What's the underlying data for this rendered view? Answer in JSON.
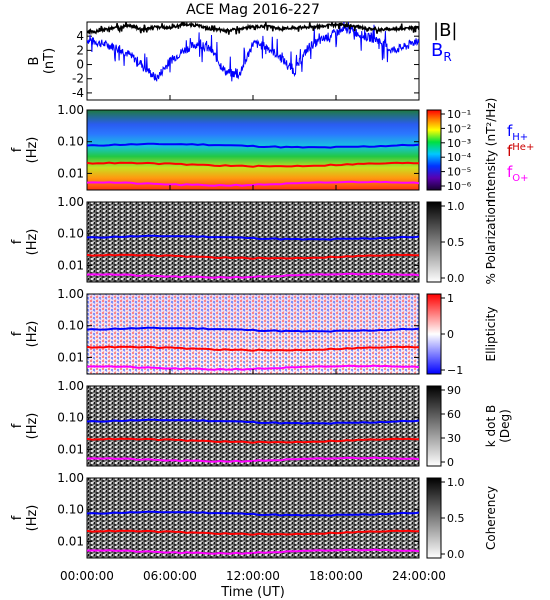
{
  "title": "ACE Mag 2016-227",
  "xlabel": "Time (UT)",
  "x_ticks": [
    "00:00:00",
    "06:00:00",
    "12:00:00",
    "18:00:00",
    "24:00:00"
  ],
  "colors": {
    "total_B": "#000000",
    "B_R": "#0000ff",
    "f_H": "#0000ff",
    "f_He": "#ff0000",
    "f_O": "#ff00ff"
  },
  "legend": {
    "absB": "|B|",
    "BR_main": "B",
    "BR_sub": "R",
    "f_main": "f",
    "H_sub": "H+",
    "He_sup": "He+",
    "O_sub": "O+"
  },
  "panel1": {
    "ylabel_main": "B",
    "ylabel_unit": "(nT)",
    "yticks": [
      "4",
      "2",
      "0",
      "-2",
      "-4"
    ],
    "ylim": [
      -5,
      6
    ]
  },
  "freq_axis": {
    "ylabel_main": "f",
    "ylabel_unit": "(Hz)",
    "yticks": [
      "1.00",
      "0.10",
      "0.01"
    ]
  },
  "panels": {
    "intensity": {
      "cbar_label": "Intensity (nT²/Hz)",
      "cbar_ticks": [
        "10⁻¹",
        "10⁻²",
        "10⁻³",
        "10⁻⁴",
        "10⁻⁵",
        "10⁻⁶"
      ]
    },
    "polarization": {
      "cbar_label": "% Polarization",
      "cbar_ticks": [
        "1.0",
        "0.5",
        "0.0"
      ]
    },
    "ellipticity": {
      "cbar_label": "Ellipticity",
      "cbar_ticks": [
        "1",
        "0",
        "−1"
      ]
    },
    "kdotb": {
      "cbar_label": "k dot B",
      "cbar_unit": "(Deg)",
      "cbar_ticks": [
        "90",
        "60",
        "30",
        "0"
      ]
    },
    "coherency": {
      "cbar_label": "Coherency",
      "cbar_ticks": [
        "1.0",
        "0.5",
        "0.0"
      ]
    }
  },
  "chart_data": {
    "type": "line",
    "title": "ACE Mag 2016-227",
    "xlabel": "Time (UT)",
    "xlim_hours": [
      0,
      24
    ],
    "ylabel": "B (nT)",
    "ylim": [
      -5,
      6
    ],
    "series": [
      {
        "name": "|B|",
        "x": [
          0,
          1,
          2,
          3,
          4,
          5,
          6,
          7,
          8,
          9,
          10,
          11,
          12,
          13,
          14,
          15,
          16,
          17,
          18,
          19,
          20,
          21,
          22,
          23,
          24
        ],
        "values": [
          4.5,
          4.8,
          5.2,
          5.5,
          5.0,
          5.3,
          5.2,
          5.7,
          5.5,
          5.0,
          4.8,
          5.0,
          5.3,
          5.4,
          5.0,
          5.2,
          5.3,
          5.4,
          5.6,
          5.5,
          5.2,
          4.9,
          5.0,
          5.1,
          5.2
        ]
      },
      {
        "name": "B_R",
        "x": [
          0,
          1,
          2,
          3,
          4,
          5,
          6,
          7,
          8,
          9,
          10,
          11,
          12,
          13,
          14,
          15,
          16,
          17,
          18,
          19,
          20,
          21,
          22,
          23,
          24
        ],
        "values": [
          3.5,
          3.0,
          2.5,
          1.5,
          0.0,
          -2.0,
          0.5,
          2.0,
          3.0,
          2.0,
          -1.0,
          -1.5,
          3.0,
          2.5,
          1.0,
          -1.0,
          2.5,
          3.5,
          4.5,
          5.0,
          4.0,
          3.5,
          2.0,
          2.5,
          3.5
        ]
      }
    ],
    "gyrofrequencies_hz": {
      "H+": 0.075,
      "He+": 0.019,
      "O+": 0.0048
    },
    "freq_ylim_hz": [
      0.003,
      1.0
    ],
    "freq_scale": "log"
  }
}
